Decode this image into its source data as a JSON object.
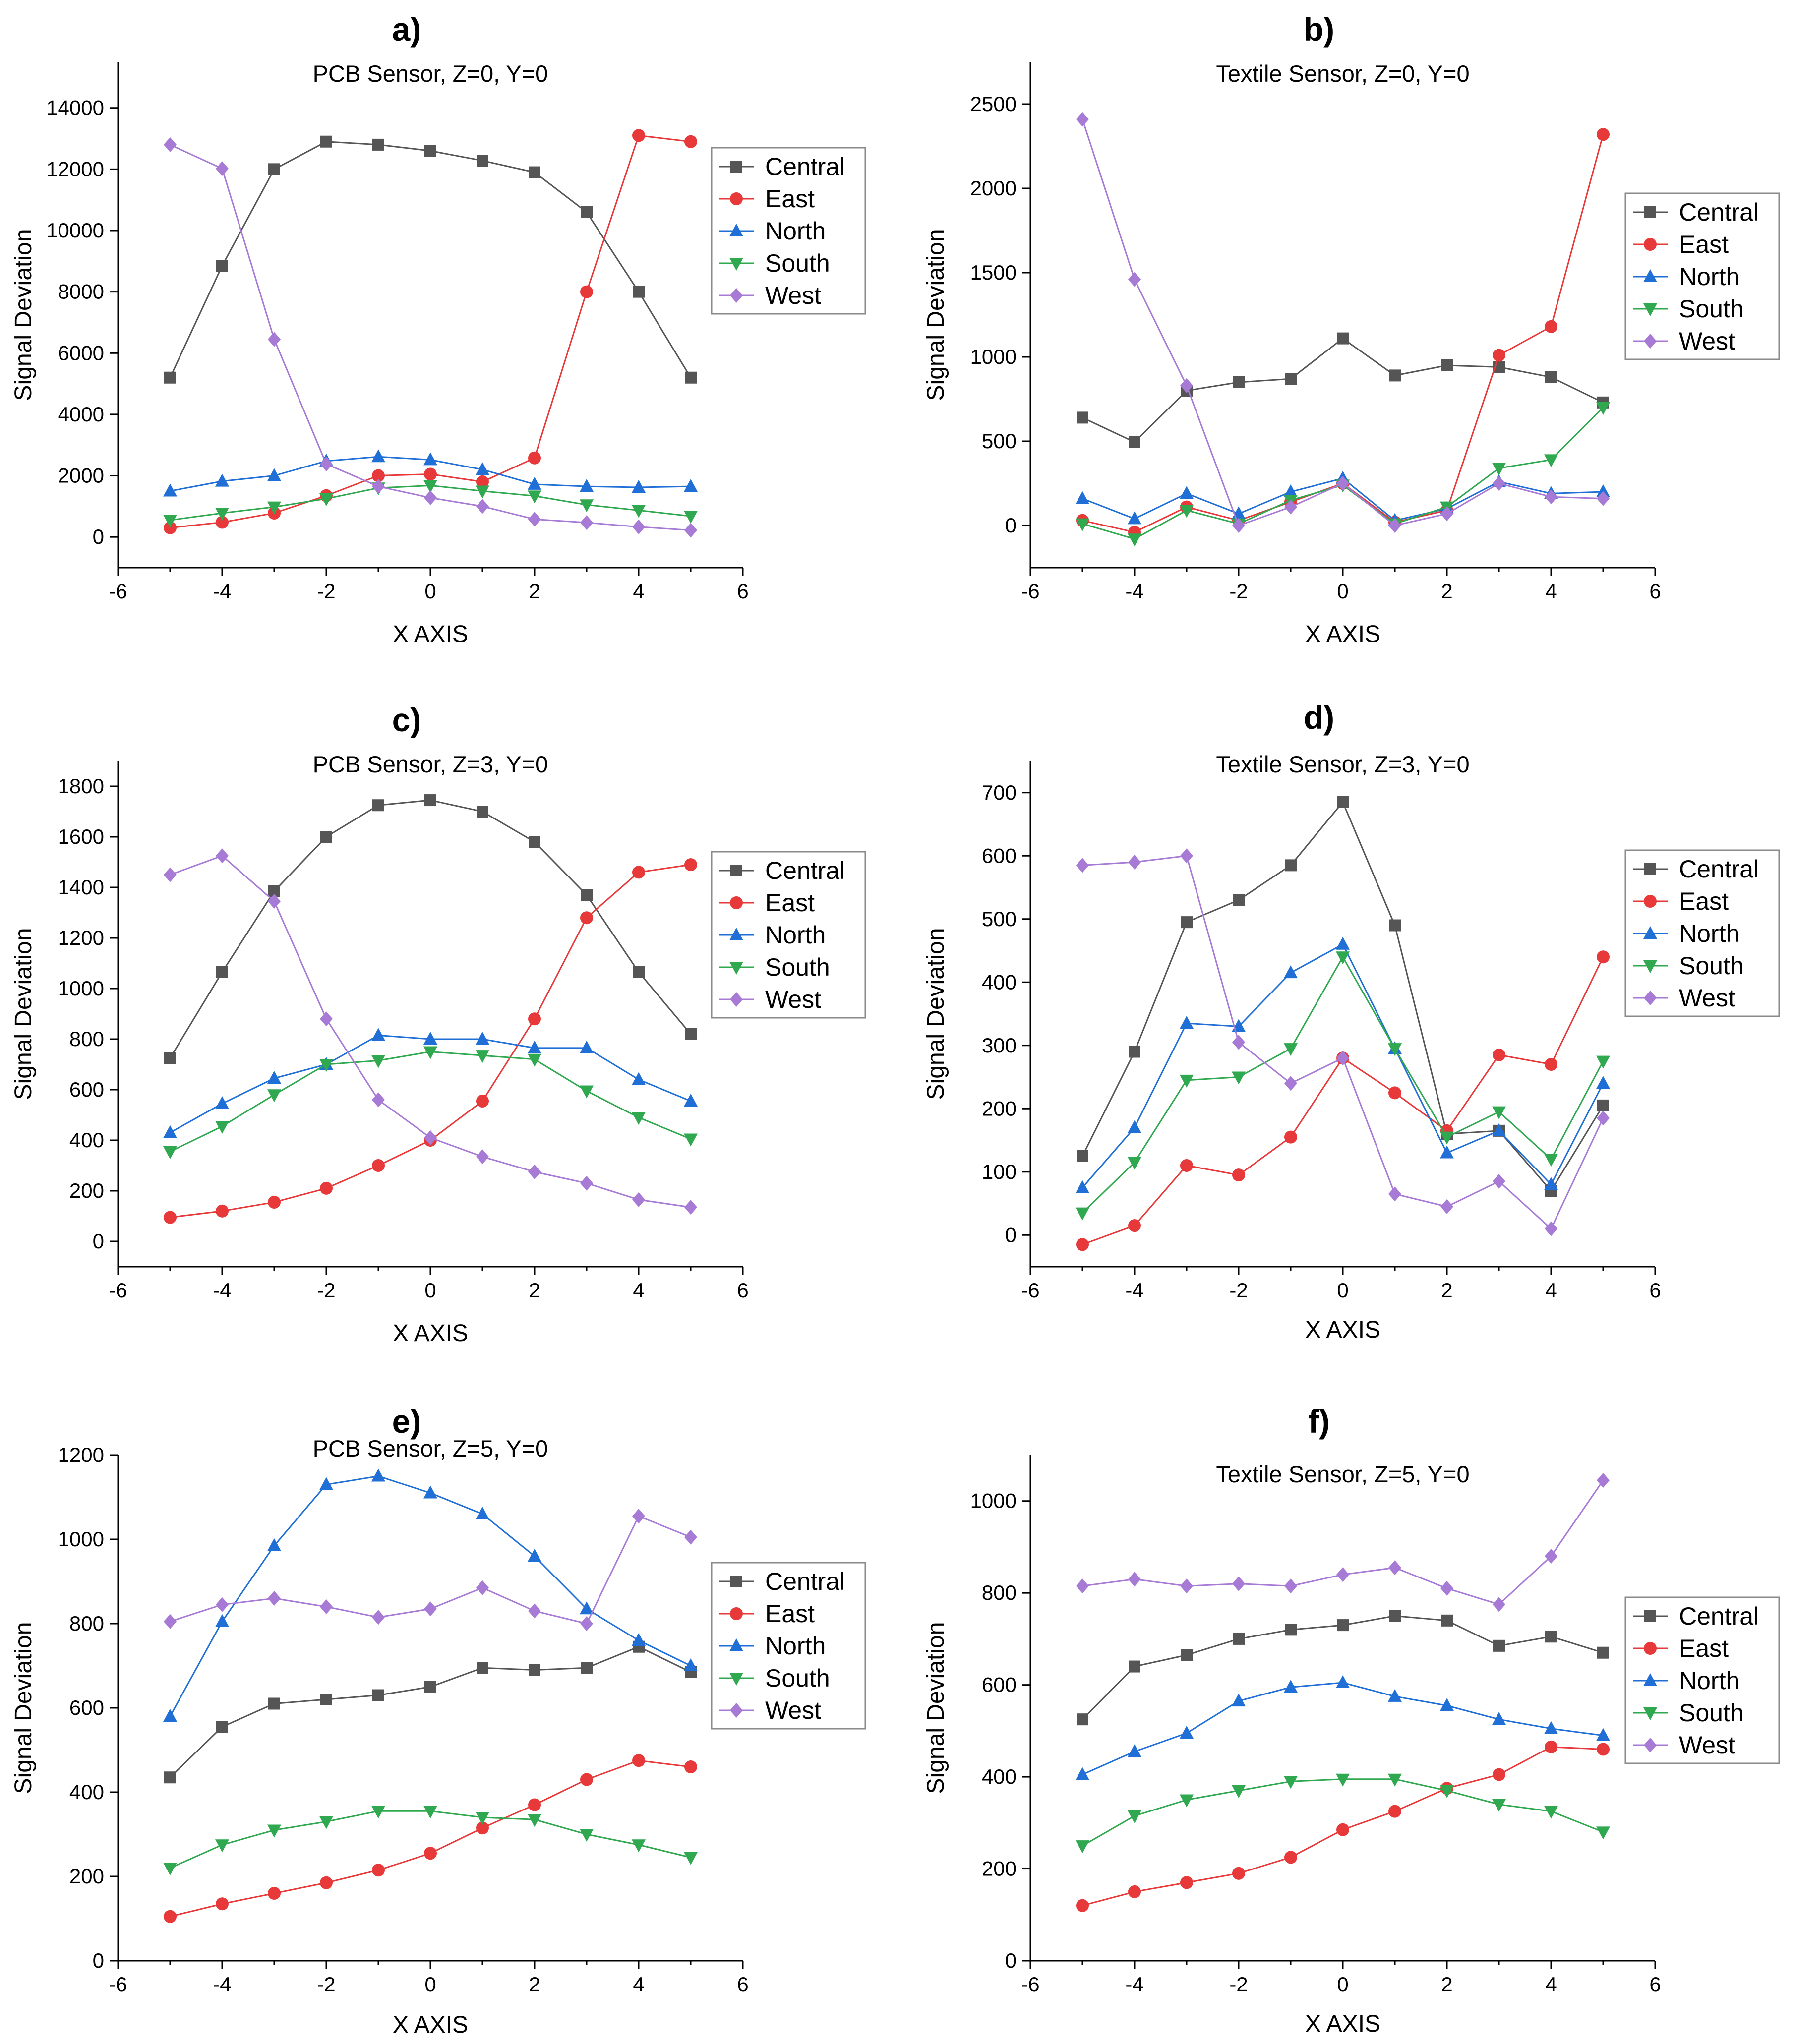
{
  "series_styles": [
    {
      "name": "Central",
      "color": "#555555",
      "marker": "square"
    },
    {
      "name": "East",
      "color": "#e8393a",
      "marker": "circle"
    },
    {
      "name": "North",
      "color": "#1f6fd6",
      "marker": "triangle-up"
    },
    {
      "name": "South",
      "color": "#2fa84f",
      "marker": "triangle-down"
    },
    {
      "name": "West",
      "color": "#a77ad6",
      "marker": "diamond"
    }
  ],
  "chart_data": [
    {
      "panel": "a)",
      "type": "line",
      "title": "PCB Sensor, Z=0, Y=0",
      "xlabel": "X AXIS",
      "ylabel": "Signal Deviation",
      "xlim": [
        -6,
        6
      ],
      "ylim": [
        -1000,
        15500
      ],
      "xticks": [
        -6,
        -4,
        -2,
        0,
        2,
        4,
        6
      ],
      "yticks": [
        0,
        2000,
        4000,
        6000,
        8000,
        10000,
        12000,
        14000
      ],
      "legend": "upper-right",
      "x": [
        -5,
        -4,
        -3,
        -2,
        -1,
        0,
        1,
        2,
        3,
        4,
        5
      ],
      "series": [
        {
          "name": "Central",
          "values": [
            5200,
            8850,
            12000,
            12900,
            12800,
            12600,
            12280,
            11900,
            10600,
            8000,
            5200
          ]
        },
        {
          "name": "East",
          "values": [
            300,
            480,
            780,
            1350,
            2000,
            2050,
            1800,
            2580,
            8000,
            13100,
            12900
          ]
        },
        {
          "name": "North",
          "values": [
            1500,
            1820,
            2000,
            2480,
            2620,
            2520,
            2200,
            1720,
            1650,
            1620,
            1650
          ]
        },
        {
          "name": "South",
          "values": [
            550,
            780,
            980,
            1250,
            1600,
            1680,
            1500,
            1340,
            1050,
            870,
            680
          ]
        },
        {
          "name": "West",
          "values": [
            12800,
            12020,
            6450,
            2380,
            1650,
            1280,
            1000,
            580,
            470,
            330,
            220
          ]
        }
      ]
    },
    {
      "panel": "b)",
      "type": "line",
      "title": "Textile Sensor, Z=0, Y=0",
      "xlabel": "X AXIS",
      "ylabel": "Signal Deviation",
      "xlim": [
        -6,
        6
      ],
      "ylim": [
        -250,
        2750
      ],
      "xticks": [
        -6,
        -4,
        -2,
        0,
        2,
        4,
        6
      ],
      "yticks": [
        0,
        500,
        1000,
        1500,
        2000,
        2500
      ],
      "legend": "right",
      "x": [
        -5,
        -4,
        -3,
        -2,
        -1,
        0,
        1,
        2,
        3,
        4,
        5
      ],
      "series": [
        {
          "name": "Central",
          "values": [
            640,
            495,
            800,
            850,
            870,
            1110,
            890,
            950,
            940,
            880,
            730
          ]
        },
        {
          "name": "East",
          "values": [
            30,
            -40,
            110,
            30,
            140,
            250,
            20,
            90,
            1010,
            1180,
            2320
          ]
        },
        {
          "name": "North",
          "values": [
            160,
            40,
            190,
            70,
            200,
            280,
            30,
            100,
            260,
            190,
            200
          ]
        },
        {
          "name": "South",
          "values": [
            10,
            -80,
            90,
            10,
            150,
            240,
            10,
            110,
            340,
            390,
            700
          ]
        },
        {
          "name": "West",
          "values": [
            2410,
            1460,
            830,
            0,
            110,
            250,
            0,
            70,
            250,
            170,
            160
          ]
        }
      ]
    },
    {
      "panel": "c)",
      "type": "line",
      "title": "PCB Sensor, Z=3, Y=0",
      "xlabel": "X AXIS",
      "ylabel": "Signal Deviation",
      "xlim": [
        -6,
        6
      ],
      "ylim": [
        -100,
        1900
      ],
      "xticks": [
        -6,
        -4,
        -2,
        0,
        2,
        4,
        6
      ],
      "yticks": [
        0,
        200,
        400,
        600,
        800,
        1000,
        1200,
        1400,
        1600,
        1800
      ],
      "legend": "right",
      "x": [
        -5,
        -4,
        -3,
        -2,
        -1,
        0,
        1,
        2,
        3,
        4,
        5
      ],
      "series": [
        {
          "name": "Central",
          "values": [
            725,
            1065,
            1385,
            1600,
            1725,
            1745,
            1700,
            1580,
            1370,
            1065,
            820
          ]
        },
        {
          "name": "East",
          "values": [
            95,
            120,
            155,
            210,
            300,
            400,
            555,
            880,
            1280,
            1460,
            1490
          ]
        },
        {
          "name": "North",
          "values": [
            430,
            545,
            645,
            700,
            815,
            800,
            800,
            765,
            765,
            640,
            555
          ]
        },
        {
          "name": "South",
          "values": [
            355,
            455,
            580,
            700,
            715,
            750,
            735,
            720,
            595,
            490,
            405
          ]
        },
        {
          "name": "West",
          "values": [
            1450,
            1525,
            1345,
            880,
            560,
            410,
            335,
            275,
            230,
            165,
            135
          ]
        }
      ]
    },
    {
      "panel": "d)",
      "type": "line",
      "title": "Textile Sensor, Z=3, Y=0",
      "xlabel": "X AXIS",
      "ylabel": "Signal Deviation",
      "xlim": [
        -6,
        6
      ],
      "ylim": [
        -50,
        750
      ],
      "xticks": [
        -6,
        -4,
        -2,
        0,
        2,
        4,
        6
      ],
      "yticks": [
        0,
        100,
        200,
        300,
        400,
        500,
        600,
        700
      ],
      "legend": "upper-right",
      "x": [
        -5,
        -4,
        -3,
        -2,
        -1,
        0,
        1,
        2,
        3,
        4,
        5
      ],
      "series": [
        {
          "name": "Central",
          "values": [
            125,
            290,
            495,
            530,
            585,
            685,
            490,
            160,
            165,
            70,
            205
          ]
        },
        {
          "name": "East",
          "values": [
            -15,
            15,
            110,
            95,
            155,
            280,
            225,
            165,
            285,
            270,
            440
          ]
        },
        {
          "name": "North",
          "values": [
            75,
            170,
            335,
            330,
            415,
            460,
            295,
            130,
            165,
            80,
            240
          ]
        },
        {
          "name": "South",
          "values": [
            35,
            115,
            245,
            250,
            295,
            440,
            295,
            155,
            195,
            120,
            275
          ]
        },
        {
          "name": "West",
          "values": [
            585,
            590,
            600,
            305,
            240,
            280,
            65,
            45,
            85,
            10,
            185
          ]
        }
      ]
    },
    {
      "panel": "e)",
      "type": "line",
      "title": "PCB Sensor, Z=5, Y=0",
      "xlabel": "X AXIS",
      "ylabel": "Signal Deviation",
      "xlim": [
        -6,
        6
      ],
      "ylim": [
        0,
        1200
      ],
      "xticks": [
        -6,
        -4,
        -2,
        0,
        2,
        4,
        6
      ],
      "yticks": [
        0,
        200,
        400,
        600,
        800,
        1000,
        1200
      ],
      "legend": "right",
      "x": [
        -5,
        -4,
        -3,
        -2,
        -1,
        0,
        1,
        2,
        3,
        4,
        5
      ],
      "series": [
        {
          "name": "Central",
          "values": [
            435,
            555,
            610,
            620,
            630,
            650,
            695,
            690,
            695,
            745,
            685
          ]
        },
        {
          "name": "East",
          "values": [
            105,
            135,
            160,
            185,
            215,
            255,
            315,
            370,
            430,
            475,
            460
          ]
        },
        {
          "name": "North",
          "values": [
            580,
            805,
            985,
            1130,
            1150,
            1110,
            1060,
            960,
            835,
            760,
            700
          ]
        },
        {
          "name": "South",
          "values": [
            220,
            275,
            310,
            330,
            355,
            355,
            340,
            335,
            300,
            275,
            245
          ]
        },
        {
          "name": "West",
          "values": [
            805,
            845,
            860,
            840,
            815,
            835,
            885,
            830,
            800,
            1055,
            1005
          ]
        }
      ]
    },
    {
      "panel": "f)",
      "type": "line",
      "title": "Textile Sensor, Z=5, Y=0",
      "xlabel": "X AXIS",
      "ylabel": "Signal Deviation",
      "xlim": [
        -6,
        6
      ],
      "ylim": [
        0,
        1100
      ],
      "xticks": [
        -6,
        -4,
        -2,
        0,
        2,
        4,
        6
      ],
      "yticks": [
        0,
        200,
        400,
        600,
        800,
        1000
      ],
      "legend": "right",
      "x": [
        -5,
        -4,
        -3,
        -2,
        -1,
        0,
        1,
        2,
        3,
        4,
        5
      ],
      "series": [
        {
          "name": "Central",
          "values": [
            525,
            640,
            665,
            700,
            720,
            730,
            750,
            740,
            685,
            705,
            670
          ]
        },
        {
          "name": "East",
          "values": [
            120,
            150,
            170,
            190,
            225,
            285,
            325,
            375,
            405,
            465,
            460
          ]
        },
        {
          "name": "North",
          "values": [
            405,
            455,
            495,
            565,
            595,
            605,
            575,
            555,
            525,
            505,
            490
          ]
        },
        {
          "name": "South",
          "values": [
            250,
            315,
            350,
            370,
            390,
            395,
            395,
            370,
            340,
            325,
            280
          ]
        },
        {
          "name": "West",
          "values": [
            815,
            830,
            815,
            820,
            815,
            840,
            855,
            810,
            775,
            880,
            1045
          ]
        }
      ]
    }
  ]
}
